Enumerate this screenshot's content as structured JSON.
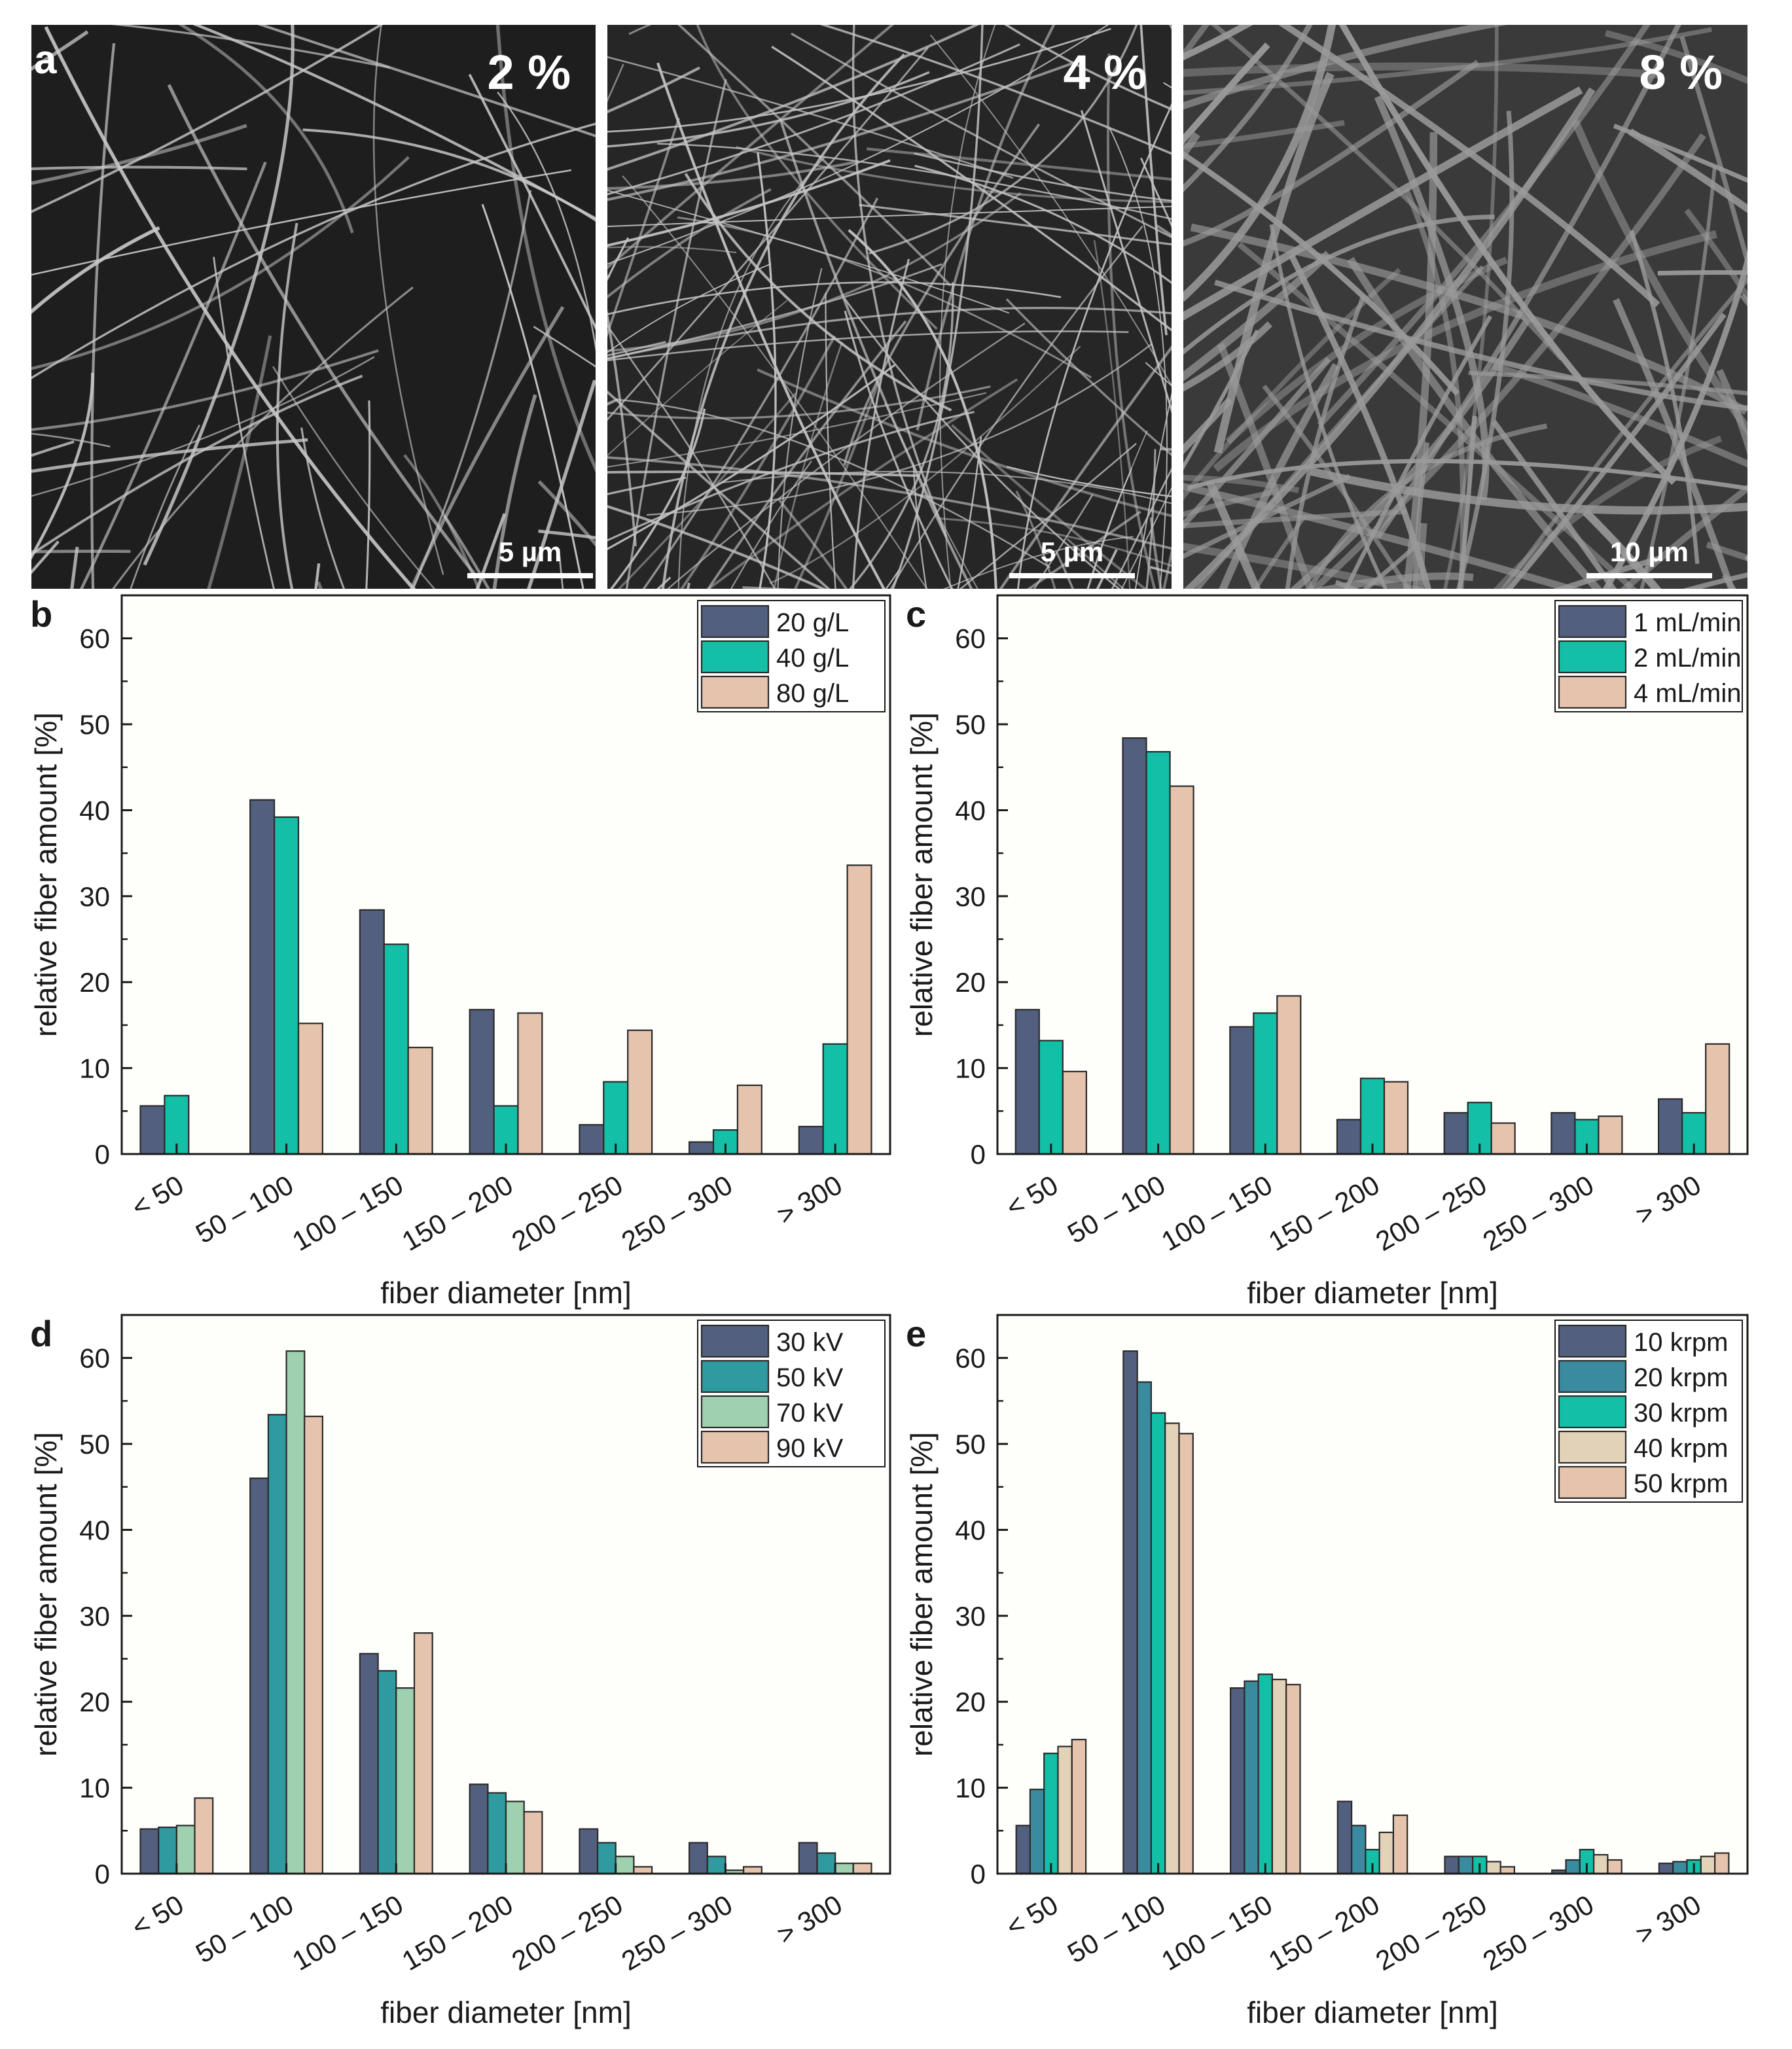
{
  "figure_label_a": "a",
  "sem_images": [
    {
      "concentration": "2 %",
      "scale_bar": "5 µm"
    },
    {
      "concentration": "4 %",
      "scale_bar": "5 µm"
    },
    {
      "concentration": "8 %",
      "scale_bar": "10 µm"
    }
  ],
  "colors": {
    "dark_slate": "#535f7e",
    "teal_blue": "#3a8aa0",
    "dark_teal": "#2f9aa0",
    "teal": "#13bfa6",
    "mint": "#9fd0b0",
    "cream": "#e2d2b8",
    "peach": "#e5c3ac",
    "plot_bg": "#fefefb"
  },
  "chart_data": [
    {
      "panel": "b",
      "type": "bar",
      "xlabel": "fiber diameter [nm]",
      "ylabel": "relative fiber amount [%]",
      "ylim": [
        0,
        65
      ],
      "yticks": [
        "0",
        "10",
        "20",
        "30",
        "40",
        "50",
        "60"
      ],
      "categories": [
        "< 50",
        "50 – 100",
        "100 – 150",
        "150 – 200",
        "200 – 250",
        "250 – 300",
        "> 300"
      ],
      "legend_position": "top-right",
      "series": [
        {
          "name": "20 g/L",
          "color": "#535f7e",
          "values": [
            5.6,
            41.2,
            28.4,
            16.8,
            3.4,
            1.4,
            3.2
          ]
        },
        {
          "name": "40 g/L",
          "color": "#13bfa6",
          "values": [
            6.8,
            39.2,
            24.4,
            5.6,
            8.4,
            2.8,
            12.8
          ]
        },
        {
          "name": "80 g/L",
          "color": "#e5c3ac",
          "values": [
            0,
            15.2,
            12.4,
            16.4,
            14.4,
            8.0,
            33.6
          ]
        }
      ]
    },
    {
      "panel": "c",
      "type": "bar",
      "xlabel": "fiber diameter [nm]",
      "ylabel": "relative fiber amount [%]",
      "ylim": [
        0,
        65
      ],
      "yticks": [
        "0",
        "10",
        "20",
        "30",
        "40",
        "50",
        "60"
      ],
      "categories": [
        "< 50",
        "50 – 100",
        "100 – 150",
        "150 – 200",
        "200 – 250",
        "250 – 300",
        "> 300"
      ],
      "legend_position": "top-right",
      "series": [
        {
          "name": "1 mL/min",
          "color": "#535f7e",
          "values": [
            16.8,
            48.4,
            14.8,
            4.0,
            4.8,
            4.8,
            6.4
          ]
        },
        {
          "name": "2 mL/min",
          "color": "#13bfa6",
          "values": [
            13.2,
            46.8,
            16.4,
            8.8,
            6.0,
            4.0,
            4.8
          ]
        },
        {
          "name": "4 mL/min",
          "color": "#e5c3ac",
          "values": [
            9.6,
            42.8,
            18.4,
            8.4,
            3.6,
            4.4,
            12.8
          ]
        }
      ]
    },
    {
      "panel": "d",
      "type": "bar",
      "xlabel": "fiber diameter [nm]",
      "ylabel": "relative fiber amount [%]",
      "ylim": [
        0,
        65
      ],
      "yticks": [
        "0",
        "10",
        "20",
        "30",
        "40",
        "50",
        "60"
      ],
      "categories": [
        "< 50",
        "50 – 100",
        "100 – 150",
        "150 – 200",
        "200 – 250",
        "250 – 300",
        "> 300"
      ],
      "legend_position": "top-right",
      "series": [
        {
          "name": "30 kV",
          "color": "#535f7e",
          "values": [
            5.2,
            46.0,
            25.6,
            10.4,
            5.2,
            3.6,
            3.6
          ]
        },
        {
          "name": "50 kV",
          "color": "#2f9aa0",
          "values": [
            5.4,
            53.4,
            23.6,
            9.4,
            3.6,
            2.0,
            2.4
          ]
        },
        {
          "name": "70 kV",
          "color": "#9fd0b0",
          "values": [
            5.6,
            60.8,
            21.6,
            8.4,
            2.0,
            0.4,
            1.2
          ]
        },
        {
          "name": "90 kV",
          "color": "#e5c3ac",
          "values": [
            8.8,
            53.2,
            28.0,
            7.2,
            0.8,
            0.8,
            1.2
          ]
        }
      ]
    },
    {
      "panel": "e",
      "type": "bar",
      "xlabel": "fiber diameter [nm]",
      "ylabel": "relative fiber amount [%]",
      "ylim": [
        0,
        65
      ],
      "yticks": [
        "0",
        "10",
        "20",
        "30",
        "40",
        "50",
        "60"
      ],
      "categories": [
        "< 50",
        "50 – 100",
        "100 – 150",
        "150 – 200",
        "200 – 250",
        "250 – 300",
        "> 300"
      ],
      "legend_position": "top-right",
      "series": [
        {
          "name": "10 krpm",
          "color": "#535f7e",
          "values": [
            5.6,
            60.8,
            21.6,
            8.4,
            2.0,
            0.4,
            1.2
          ]
        },
        {
          "name": "20 krpm",
          "color": "#3a8aa0",
          "values": [
            9.8,
            57.2,
            22.4,
            5.6,
            2.0,
            1.6,
            1.4
          ]
        },
        {
          "name": "30 krpm",
          "color": "#13bfa6",
          "values": [
            14.0,
            53.6,
            23.2,
            2.8,
            2.0,
            2.8,
            1.6
          ]
        },
        {
          "name": "40 krpm",
          "color": "#e2d2b8",
          "values": [
            14.8,
            52.4,
            22.6,
            4.8,
            1.4,
            2.2,
            2.0
          ]
        },
        {
          "name": "50 krpm",
          "color": "#e5c3ac",
          "values": [
            15.6,
            51.2,
            22.0,
            6.8,
            0.8,
            1.6,
            2.4
          ]
        }
      ]
    }
  ]
}
